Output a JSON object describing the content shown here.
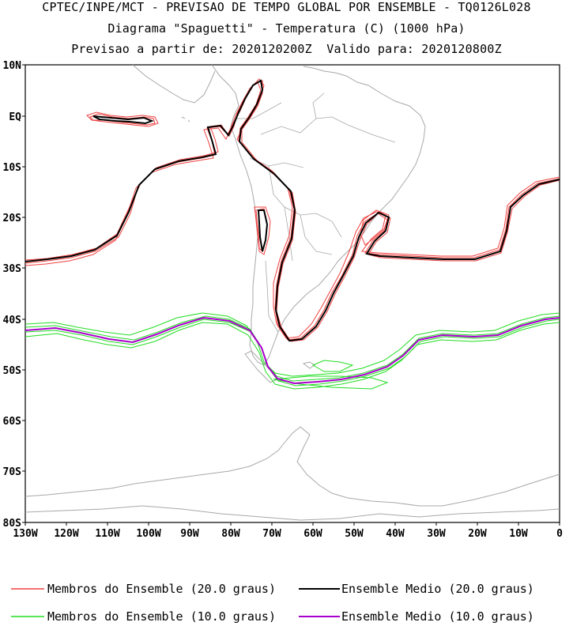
{
  "header": {
    "line1": "CPTEC/INPE/MCT - PREVISAO DE TEMPO GLOBAL POR ENSEMBLE - TQ0126L028",
    "line2": "Diagrama \"Spaguetti\" - Temperatura (C) (1000 hPa)",
    "line3": "Previsao a partir de: 2020120200Z  Valido para: 2020120800Z"
  },
  "axes": {
    "lat_ticks": [
      "10N",
      "EQ",
      "10S",
      "20S",
      "30S",
      "40S",
      "50S",
      "60S",
      "70S",
      "80S"
    ],
    "lon_ticks": [
      "130W",
      "120W",
      "110W",
      "100W",
      "90W",
      "80W",
      "70W",
      "60W",
      "50W",
      "40W",
      "30W",
      "20W",
      "10W",
      "0"
    ]
  },
  "legend": [
    {
      "label": "Membros do Ensemble (20.0 graus)",
      "color": "#f04040"
    },
    {
      "label": "Ensemble Medio (20.0 graus)",
      "color": "#000000"
    },
    {
      "label": "Membros do Ensemble (10.0 graus)",
      "color": "#22dd22"
    },
    {
      "label": "Ensemble Medio (10.0 graus)",
      "color": "#aa00cc"
    }
  ],
  "colors": {
    "coast": "#a8a8a8",
    "members_20": "#f04040",
    "mean_20": "#000000",
    "members_10": "#22dd22",
    "mean_10": "#aa00cc"
  }
}
